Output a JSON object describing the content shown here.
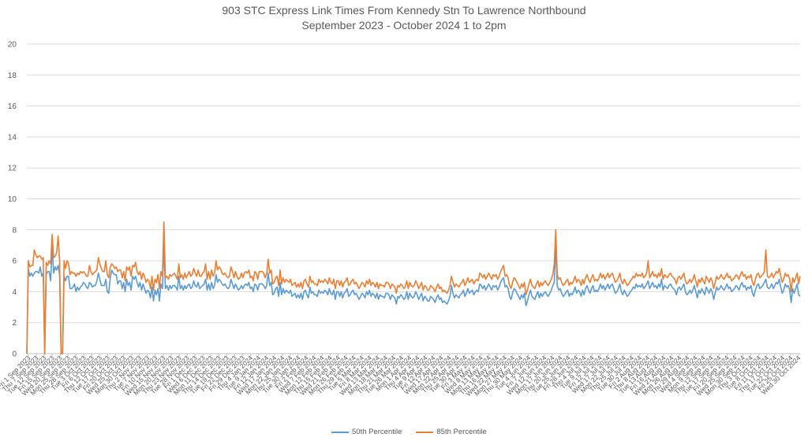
{
  "chart_data": {
    "type": "line",
    "title": "903 STC Express Link Times From Kennedy Stn To Lawrence Northbound",
    "subtitle": "September 2023 - October 2024 1 to 2pm",
    "xlabel": "",
    "ylabel": "",
    "ylim": [
      0,
      20
    ],
    "y_ticks": [
      0,
      2,
      4,
      6,
      8,
      10,
      12,
      14,
      16,
      18,
      20
    ],
    "grid": true,
    "legend": "bottom",
    "x_tick_labels": [
      "Fri 1 Sep 2023",
      "Thu 7 Sep 2023",
      "Tue 12 Sep 2023",
      "Fri 15 Sep 2023",
      "Wed 20 Sep 2023",
      "Mon 25 Sep 2023",
      "Thu 28 Sep 2023",
      "Tue 3 Oct 2023",
      "Fri 6 Oct 2023",
      "Thu 12 Oct 2023",
      "Tue 17 Oct 2023",
      "Fri 20 Oct 2023",
      "Wed 25 Oct 2023",
      "Mon 30 Oct 2023",
      "Thu 2 Nov 2023",
      "Tue 7 Nov 2023",
      "Fri 10 Nov 2023",
      "Wed 15 Nov 2023",
      "Mon 20 Nov 2023",
      "Thu 23 Nov 2023",
      "Tue 28 Nov 2023",
      "Fri 1 Dec 2023",
      "Wed 6 Dec 2023",
      "Mon 11 Dec 2023",
      "Thu 14 Dec 2023",
      "Tue 19 Dec 2023",
      "Fri 22 Dec 2023",
      "Fri 29 Dec 2023",
      "Thu 4 Jan 2024",
      "Tue 9 Jan 2024",
      "Fri 12 Jan 2024",
      "Wed 17 Jan 2024",
      "Mon 22 Jan 2024",
      "Thu 25 Jan 2024",
      "Tue 30 Jan 2024",
      "Fri 2 Feb 2024",
      "Wed 7 Feb 2024",
      "Mon 12 Feb 2024",
      "Thu 15 Feb 2024",
      "Wed 21 Feb 2024",
      "Mon 26 Feb 2024",
      "Thu 29 Feb 2024",
      "Tue 5 Mar 2024",
      "Fri 8 Mar 2024",
      "Wed 13 Mar 2024",
      "Mon 18 Mar 2024",
      "Thu 21 Mar 2024",
      "Tue 26 Mar 2024",
      "Mon 1 Apr 2024",
      "Thu 4 Apr 2024",
      "Tue 9 Apr 2024",
      "Fri 12 Apr 2024",
      "Wed 17 Apr 2024",
      "Mon 22 Apr 2024",
      "Thu 25 Apr 2024",
      "Tue 30 Apr 2024",
      "Fri 3 May 2024",
      "Wed 8 May 2024",
      "Mon 13 May 2024",
      "Thu 16 May 2024",
      "Wed 22 May 2024",
      "Mon 27 May 2024",
      "Thu 30 May 2024",
      "Tue 4 Jun 2024",
      "Fri 7 Jun 2024",
      "Wed 12 Jun 2024",
      "Mon 17 Jun 2024",
      "Thu 20 Jun 2024",
      "Tue 25 Jun 2024",
      "Fri 28 Jun 2024",
      "Thu 4 Jul 2024",
      "Tue 9 Jul 2024",
      "Fri 12 Jul 2024",
      "Wed 17 Jul 2024",
      "Mon 22 Jul 2024",
      "Thu 25 Jul 2024",
      "Tue 30 Jul 2024",
      "Fri 2 Aug 2024",
      "Thu 8 Aug 2024",
      "Tue 13 Aug 2024",
      "Fri 16 Aug 2024",
      "Wed 21 Aug 2024",
      "Mon 26 Aug 2024",
      "Thu 29 Aug 2024",
      "Wed 4 Sep 2024",
      "Mon 9 Sep 2024",
      "Thu 12 Sep 2024",
      "Tue 17 Sep 2024",
      "Fri 20 Sep 2024",
      "Wed 25 Sep 2024",
      "Mon 30 Sep 2024",
      "Thu 3 Oct 2024",
      "Tue 8 Oct 2024",
      "Fri 11 Oct 2024",
      "Thu 17 Oct 2024",
      "Tue 22 Oct 2024",
      "Fri 25 Oct 2024",
      "Wed 30 Oct 2024"
    ],
    "series": [
      {
        "name": "50th Percentile",
        "color": "#5B9BD5",
        "values": [
          0,
          5.5,
          5,
          5.2,
          5,
          5.2,
          5.3,
          5.3,
          5.2,
          5.6,
          5,
          5.2,
          0,
          5.1,
          5.3,
          5.3,
          4.7,
          6.9,
          5.2,
          5.6,
          5.4,
          5.7,
          5.1,
          0,
          0,
          5,
          4.7,
          5,
          5,
          4.2,
          4.2,
          4.3,
          4.5,
          4,
          4.3,
          4.1,
          4.3,
          4.4,
          4.6,
          4.5,
          4.3,
          4.2,
          4.6,
          4.5,
          4.3,
          4.4,
          4.4,
          4.7,
          5.2,
          4.8,
          4.4,
          4.4,
          4.4,
          4.8,
          4,
          3.9,
          4.9,
          5.4,
          5.2,
          5.1,
          5.1,
          4.5,
          4.7,
          4.7,
          4.2,
          4.6,
          4,
          4.8,
          4.4,
          4.6,
          4.1,
          5,
          4.8,
          5,
          4.6,
          4.3,
          4.6,
          4.1,
          4.5,
          4.2,
          3.9,
          4.1,
          4,
          3.6,
          4.3,
          3.4,
          4.1,
          3.8,
          4.2,
          3.4,
          4.5,
          4.2,
          7,
          4.2,
          4.4,
          4.1,
          4.4,
          4.2,
          4.4,
          4.4,
          4.3,
          4.1,
          5,
          4.2,
          4.4,
          4.1,
          4.4,
          4.2,
          4.4,
          4.5,
          4.2,
          4.3,
          4.7,
          4.4,
          4.3,
          4.6,
          4.2,
          4.3,
          4.4,
          4.5,
          4.8,
          4.1,
          4.5,
          4.1,
          4.6,
          4.2,
          4.4,
          5.1,
          4.6,
          4.8,
          4.7,
          4.5,
          4.4,
          4.5,
          4.3,
          4.2,
          4.3,
          4.8,
          4.5,
          4.2,
          4.5,
          4.3,
          4.1,
          4.2,
          4.4,
          4.2,
          4.4,
          4.5,
          4.4,
          4.6,
          4.2,
          4.3,
          4,
          4.5,
          4.4,
          4.1,
          4.5,
          4.5,
          4.5,
          4.4,
          4.2,
          4.4,
          5.2,
          4.4,
          4.6,
          3.8,
          3.9,
          4.2,
          4.3,
          3.7,
          4.6,
          3.8,
          4.2,
          3.9,
          4.1,
          4,
          3.9,
          4.1,
          3.7,
          3.8,
          3.9,
          3.6,
          3.8,
          3.6,
          3.9,
          3.5,
          4,
          4.1,
          3.8,
          3.6,
          4.3,
          3.9,
          4,
          3.8,
          3.8,
          3.7,
          4.1,
          3.9,
          4,
          3.9,
          4.1,
          4,
          3.8,
          4.2,
          3.9,
          3.8,
          4.1,
          3.5,
          4,
          4,
          3.7,
          4,
          3.6,
          3.9,
          4,
          4.2,
          3.7,
          3.8,
          4,
          4.1,
          3.8,
          3.9,
          3.7,
          3.5,
          3.7,
          3.9,
          3.8,
          3.6,
          4,
          3.8,
          4.1,
          3.7,
          3.9,
          3.8,
          3.6,
          3.9,
          3.5,
          3.8,
          3.7,
          3.7,
          3.6,
          3.9,
          3.9,
          3.8,
          3.5,
          3.8,
          3.7,
          3.6,
          3.2,
          3.7,
          3.6,
          3.8,
          3.7,
          3.5,
          3.6,
          4,
          3.5,
          3.9,
          3.7,
          3.6,
          3.7,
          4,
          3.8,
          3.5,
          3.7,
          3.9,
          3.4,
          3.7,
          3.6,
          3.4,
          3.4,
          3.7,
          3.6,
          3.5,
          3.3,
          3.6,
          3.8,
          3.5,
          3.6,
          3.3,
          3.4,
          3.3,
          3.2,
          3.4,
          3.7,
          4.4,
          3.9,
          3.6,
          3.8,
          3.7,
          3.6,
          3.8,
          3.9,
          4.1,
          3.7,
          3.9,
          4.2,
          3.9,
          4,
          4.1,
          3.8,
          4,
          4.1,
          4,
          4.5,
          4.4,
          4.2,
          4.4,
          4.1,
          4.3,
          4.5,
          4.3,
          4.1,
          4.4,
          4.3,
          4.4,
          4.1,
          4.3,
          4.6,
          4.8,
          4.9,
          4.3,
          4.4,
          4.2,
          3.7,
          3.5,
          3.9,
          4.2,
          4.1,
          3.9,
          3.7,
          3.5,
          3.8,
          3.6,
          3.9,
          3.1,
          3.4,
          3.8,
          4.1,
          3.7,
          3.6,
          3.5,
          3.8,
          4,
          3.6,
          3.9,
          3.7,
          3.9,
          4,
          3.8,
          3.7,
          3.9,
          4.1,
          4.4,
          4.6,
          7,
          4.4,
          4.1,
          4.2,
          3.9,
          3.7,
          3.8,
          4,
          4.1,
          3.7,
          3.9,
          3.8,
          4,
          4.3,
          3.9,
          4.1,
          4,
          3.7,
          4.1,
          3.8,
          4.2,
          4.4,
          4.1,
          3.9,
          4.2,
          4.4,
          4,
          4.1,
          4,
          4.2,
          4.5,
          4.2,
          4.4,
          4.1,
          4.3,
          4.5,
          4.2,
          4.4,
          4.5,
          4.2,
          3.9,
          4,
          4.2,
          4.5,
          4,
          3.8,
          4.1,
          3.9,
          3.7,
          3.8,
          4,
          4.1,
          4.3,
          4.2,
          4.5,
          4.3,
          4.4,
          4.3,
          4.5,
          4.2,
          4.3,
          4.5,
          4.7,
          4.2,
          4.4,
          4.6,
          4.3,
          4.4,
          4.2,
          4.5,
          4.3,
          4.8,
          4.1,
          4.4,
          4.3,
          4.2,
          4.4,
          4.5,
          4.3,
          4.2,
          4.1,
          3.8,
          4.2,
          4.3,
          4.1,
          4.3,
          4.5,
          4,
          3.8,
          3.9,
          4.1,
          3.9,
          4.1,
          4.4,
          4,
          3.6,
          4.1,
          3.9,
          4.2,
          4,
          3.8,
          4.3,
          4.1,
          3.9,
          4.2,
          4,
          3.5,
          3.9,
          4.3,
          4.1,
          4.2,
          4.4,
          4.2,
          4.1,
          4.3,
          4.5,
          4.2,
          4.3,
          4,
          4.1,
          4.2,
          4.4,
          4.3,
          4.1,
          4.4,
          4.6,
          4.3,
          4.4,
          4.1,
          4.3,
          4.2,
          4.4,
          3.9,
          3.7,
          4.1,
          4.4,
          4.5,
          4.2,
          4.3,
          4.4,
          4.6,
          4.8,
          4.3,
          4.2,
          4.3,
          4.5,
          4.2,
          4.4,
          4.6,
          4.5,
          4.8,
          4.3,
          3.9,
          4.1,
          4.5,
          4.3,
          4.4,
          4.1,
          3.3,
          4.2,
          3.9,
          4.2,
          4.5,
          3.8,
          3.7
        ]
      },
      {
        "name": "85th Percentile",
        "color": "#ED7D31",
        "values": [
          0,
          6,
          5.6,
          5.7,
          5.7,
          6.7,
          6.4,
          6.2,
          6.3,
          6.3,
          6.1,
          6.2,
          0,
          5.9,
          5.7,
          6,
          5.8,
          7.7,
          6.2,
          6.3,
          6.5,
          7.6,
          6,
          0,
          0,
          6,
          5.5,
          6,
          5.8,
          5.1,
          5.3,
          5.2,
          5.2,
          5,
          5.2,
          5.1,
          5.3,
          5.2,
          5.3,
          5.2,
          5,
          5,
          5.7,
          5.3,
          5.1,
          5.2,
          5.3,
          5.4,
          6.2,
          5.8,
          5.5,
          5.3,
          5.3,
          6,
          5.1,
          4.9,
          5.6,
          5.8,
          5.7,
          5.5,
          5.6,
          5.3,
          5.4,
          5.4,
          4.9,
          5.3,
          4.7,
          5.6,
          5.4,
          5.6,
          5,
          5.7,
          5.6,
          5.9,
          5.3,
          5.1,
          5.3,
          4.8,
          5.2,
          5,
          4.6,
          4.8,
          4.7,
          4.2,
          5,
          4.1,
          4.8,
          4.6,
          5.1,
          4.2,
          5.3,
          5,
          8.5,
          4.9,
          5,
          4.8,
          5.1,
          5,
          5.1,
          5.2,
          5,
          4.8,
          5.8,
          4.9,
          5.1,
          4.8,
          5.2,
          4.9,
          5.1,
          5.3,
          5,
          5.1,
          5.5,
          5.2,
          5,
          5.4,
          5,
          5,
          5.2,
          5.3,
          5.8,
          4.8,
          5.3,
          4.8,
          5.4,
          5,
          5.2,
          6,
          5.4,
          5.6,
          5.5,
          5.2,
          5.1,
          5.2,
          5,
          4.9,
          5,
          5.6,
          5.3,
          4.9,
          5.3,
          5,
          4.8,
          4.9,
          5.2,
          4.9,
          5.2,
          5.3,
          5.2,
          5.4,
          4.9,
          5,
          4.7,
          5.3,
          5.2,
          4.8,
          5.3,
          5.3,
          5.3,
          5.2,
          4.9,
          5.2,
          6.1,
          5.2,
          5.4,
          4.5,
          4.6,
          4.9,
          5,
          4.4,
          5.4,
          4.5,
          4.9,
          4.6,
          4.8,
          4.7,
          4.6,
          4.8,
          4.4,
          4.5,
          4.6,
          4.3,
          4.5,
          4.3,
          4.6,
          4.2,
          4.7,
          4.8,
          4.5,
          4.3,
          5,
          4.6,
          4.7,
          4.5,
          4.5,
          4.4,
          4.8,
          4.6,
          4.7,
          4.6,
          4.8,
          4.7,
          4.5,
          4.9,
          4.6,
          4.5,
          4.8,
          4.2,
          4.7,
          4.7,
          4.4,
          4.7,
          4.3,
          4.6,
          4.7,
          4.9,
          4.4,
          4.5,
          4.7,
          4.8,
          4.5,
          4.6,
          4.4,
          4.2,
          4.4,
          4.6,
          4.5,
          4.3,
          4.7,
          4.5,
          4.8,
          4.4,
          4.6,
          4.5,
          4.3,
          4.6,
          4.2,
          4.5,
          4.4,
          4.4,
          4.3,
          4.6,
          4.6,
          4.5,
          4.2,
          4.5,
          4.4,
          4.3,
          3.9,
          4.4,
          4.3,
          4.5,
          4.4,
          4.2,
          4.3,
          4.7,
          4.2,
          4.6,
          4.4,
          4.3,
          4.4,
          4.7,
          4.5,
          4.2,
          4.4,
          4.6,
          4.1,
          4.4,
          4.3,
          4.1,
          4.1,
          4.4,
          4.3,
          4.2,
          4,
          4.3,
          4.5,
          4.2,
          4.3,
          4,
          4.1,
          4,
          3.9,
          4.1,
          4.4,
          5,
          4.6,
          4.3,
          4.5,
          4.4,
          4.3,
          4.5,
          4.6,
          4.8,
          4.4,
          4.6,
          4.9,
          4.6,
          4.7,
          4.8,
          4.5,
          4.7,
          4.8,
          4.7,
          5.2,
          5.1,
          4.9,
          5.1,
          4.8,
          5,
          5.2,
          5,
          4.8,
          5.1,
          5,
          5.1,
          4.8,
          5,
          5.3,
          5.5,
          5.7,
          5,
          5.1,
          4.9,
          4.4,
          4.2,
          4.6,
          4.9,
          4.8,
          4.6,
          4.4,
          4.2,
          4.5,
          4.3,
          4.6,
          3.8,
          4.1,
          4.5,
          4.8,
          4.4,
          4.3,
          4.2,
          4.5,
          4.7,
          4.3,
          4.6,
          4.4,
          4.6,
          4.7,
          4.5,
          4.4,
          4.6,
          4.8,
          5.1,
          5.8,
          8,
          5.1,
          4.8,
          4.9,
          4.6,
          4.4,
          4.5,
          4.7,
          4.8,
          4.4,
          4.6,
          4.5,
          4.7,
          5,
          4.6,
          4.8,
          4.7,
          4.4,
          4.8,
          4.5,
          4.9,
          5.1,
          4.8,
          4.6,
          4.9,
          5.1,
          4.7,
          4.8,
          4.7,
          4.9,
          5.2,
          4.9,
          5.1,
          4.8,
          5,
          5.2,
          4.9,
          5.1,
          5.2,
          4.9,
          4.6,
          4.7,
          4.9,
          5.2,
          4.7,
          4.5,
          4.8,
          4.6,
          4.4,
          4.5,
          4.7,
          4.8,
          5,
          4.9,
          5.2,
          5,
          5.1,
          5,
          5.2,
          4.9,
          5,
          5.2,
          6,
          4.9,
          5.1,
          5.3,
          5,
          5.1,
          4.9,
          5.2,
          5,
          5.5,
          4.8,
          5.1,
          5,
          4.9,
          5.1,
          5.2,
          5,
          4.9,
          4.8,
          4.5,
          4.9,
          5,
          4.8,
          5,
          5.2,
          4.7,
          4.5,
          4.6,
          4.8,
          4.6,
          4.8,
          5.1,
          4.7,
          4.3,
          4.8,
          4.6,
          4.9,
          4.7,
          4.5,
          5,
          4.8,
          4.6,
          4.9,
          4.7,
          4.2,
          4.6,
          5,
          4.8,
          4.9,
          5.1,
          4.9,
          4.8,
          5,
          5.2,
          4.9,
          5,
          4.7,
          4.8,
          4.9,
          5.1,
          5,
          4.8,
          5.1,
          5.3,
          5,
          5.1,
          4.8,
          5,
          4.9,
          5.1,
          4.6,
          4.4,
          4.8,
          5.1,
          5.2,
          4.9,
          5,
          5.1,
          5.3,
          6.7,
          5,
          4.9,
          5,
          5.2,
          4.9,
          5.1,
          5.3,
          5.2,
          5.5,
          5,
          4.6,
          4.8,
          5.2,
          5,
          5.1,
          4.8,
          4,
          4.9,
          4.6,
          4.9,
          5.2,
          4.5,
          5
        ]
      }
    ]
  }
}
